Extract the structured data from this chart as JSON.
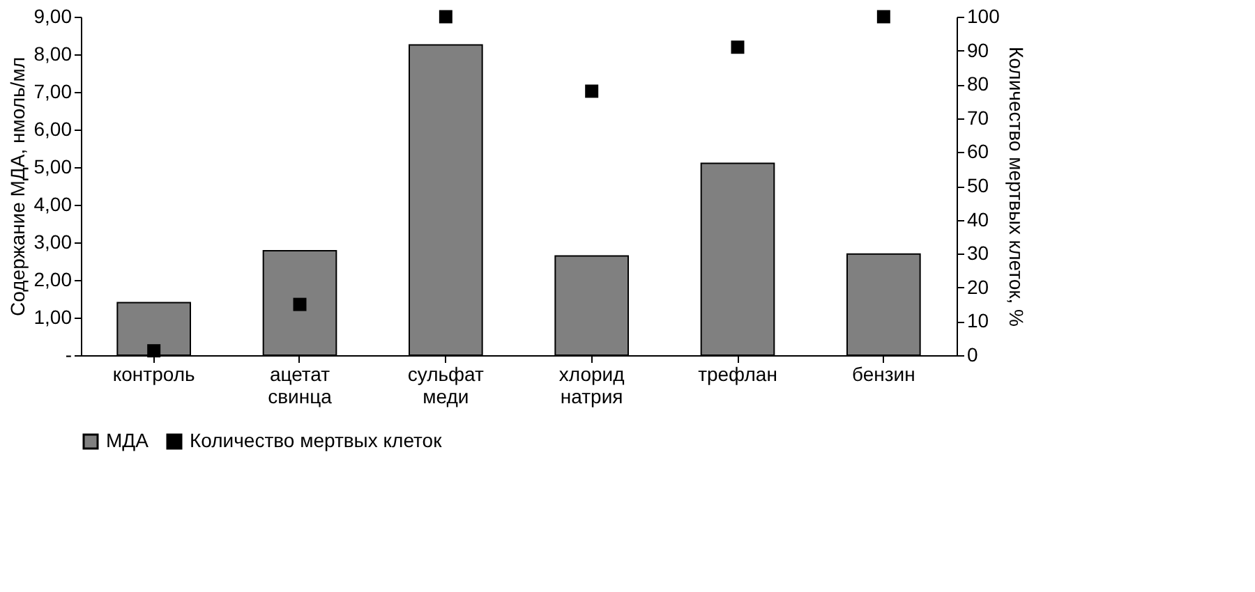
{
  "chart_data": {
    "type": "bar",
    "categories": [
      "контроль",
      "ацетат свинца",
      "сульфат меди",
      "хлорид натрия",
      "трефлан",
      "бензин"
    ],
    "ylabel": "Содержание МДА, нмоль/мл",
    "y2label": "Количество мертвых клеток, %",
    "series": [
      {
        "name": "МДА",
        "type": "bar",
        "color": "#808080",
        "values": [
          1.4,
          2.78,
          8.25,
          2.64,
          5.1,
          2.69
        ]
      },
      {
        "name": "Количество мертвых клеток",
        "type": "scatter",
        "axis": "y2",
        "marker": "square",
        "color": "#000000",
        "values": [
          1.3,
          15,
          100,
          78,
          91,
          100
        ]
      }
    ],
    "ylim": [
      0,
      9
    ],
    "yticks": [
      {
        "value": 0,
        "label": "-"
      },
      {
        "value": 1,
        "label": "1,00"
      },
      {
        "value": 2,
        "label": "2,00"
      },
      {
        "value": 3,
        "label": "3,00"
      },
      {
        "value": 4,
        "label": "4,00"
      },
      {
        "value": 5,
        "label": "5,00"
      },
      {
        "value": 6,
        "label": "6,00"
      },
      {
        "value": 7,
        "label": "7,00"
      },
      {
        "value": 8,
        "label": "8,00"
      },
      {
        "value": 9,
        "label": "9,00"
      }
    ],
    "y2lim": [
      0,
      100
    ],
    "y2ticks": [
      0,
      10,
      20,
      30,
      40,
      50,
      60,
      70,
      80,
      90,
      100
    ],
    "grid": false,
    "legend": "bottom"
  }
}
